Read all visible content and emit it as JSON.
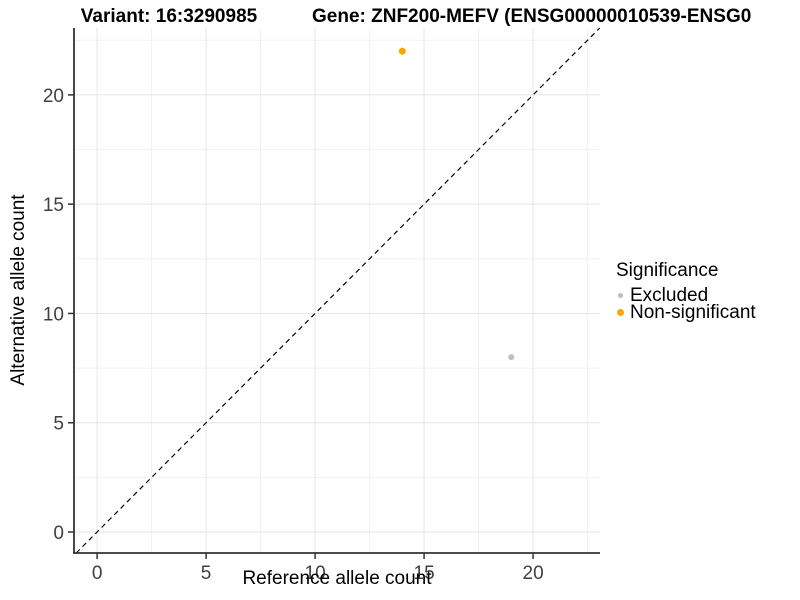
{
  "chart_data": {
    "type": "scatter",
    "titles": {
      "left": "Variant: 16:3290985",
      "right": "Gene: ZNF200-MEFV (ENSG00000010539-ENSG0"
    },
    "xlabel": "Reference allele count",
    "ylabel": "Alternative allele count",
    "xlim": [
      -1.06,
      23.07
    ],
    "ylim": [
      -0.96,
      23.06
    ],
    "xticks": [
      0,
      5,
      10,
      15,
      20
    ],
    "yticks": [
      0,
      5,
      10,
      15,
      20
    ],
    "minor_ticks": [
      2.5,
      7.5,
      12.5,
      17.5,
      22.5
    ],
    "grid": "on",
    "identity_line": {
      "type": "y-equals-x",
      "style": "dashed",
      "color": "#000000"
    },
    "series": [
      {
        "name": "Excluded",
        "color": "#BEBEBE",
        "point_diameter": 6,
        "points": [
          {
            "x": 19,
            "y": 8
          }
        ]
      },
      {
        "name": "Non-significant",
        "color": "#FFA500",
        "point_diameter": 7,
        "points": [
          {
            "x": 14,
            "y": 22
          }
        ]
      }
    ],
    "legend": {
      "title": "Significance",
      "position": "right",
      "entries": [
        {
          "label": "Excluded",
          "color": "#BEBEBE",
          "dot_diameter": 5
        },
        {
          "label": "Non-significant",
          "color": "#FFA500",
          "dot_diameter": 7
        }
      ]
    },
    "style_colors": {
      "grid_major": "#E6E6E6",
      "grid_minor": "#F2F2F2",
      "axis_line": "#333333",
      "tick_mark": "#333333",
      "tick_label": "#404040"
    }
  }
}
